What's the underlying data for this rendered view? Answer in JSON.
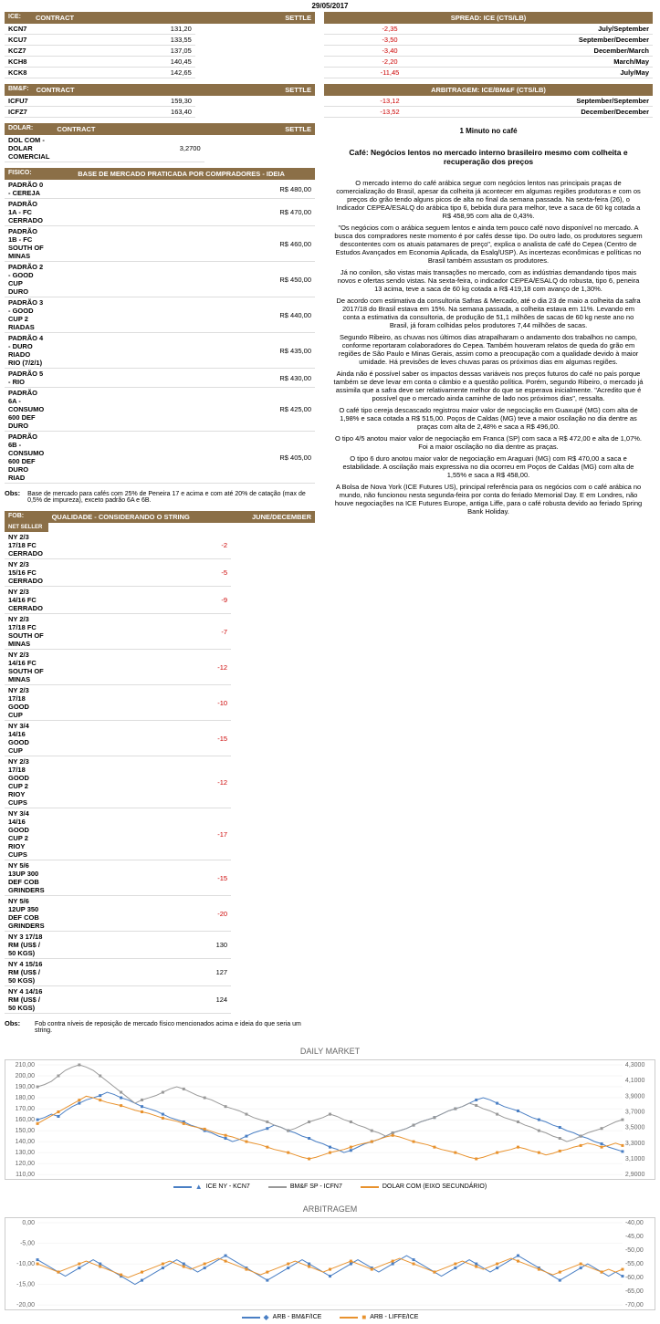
{
  "date": "29/05/2017",
  "ice_table": {
    "side_label": "ICE:",
    "headers": [
      "CONTRACT",
      "SETTLE"
    ],
    "rows": [
      [
        "KCN7",
        "131,20"
      ],
      [
        "KCU7",
        "133,55"
      ],
      [
        "KCZ7",
        "137,05"
      ],
      [
        "KCH8",
        "140,45"
      ],
      [
        "KCK8",
        "142,65"
      ]
    ]
  },
  "bmf_table": {
    "side_label": "BM&F:",
    "headers": [
      "CONTRACT",
      "SETTLE"
    ],
    "rows": [
      [
        "ICFU7",
        "159,30"
      ],
      [
        "ICFZ7",
        "163,40"
      ]
    ]
  },
  "dolar_table": {
    "side_label": "DOLAR:",
    "headers": [
      "CONTRACT",
      "SETTLE"
    ],
    "rows": [
      [
        "DOL COM - DOLAR COMERCIAL",
        "3,2700"
      ]
    ]
  },
  "fisico_table": {
    "side_label": "FISICO:",
    "header": "BASE DE MERCADO PRATICADA POR COMPRADORES - IDEIA",
    "rows": [
      [
        "PADRÃO 0 - CEREJA",
        "R$ 480,00"
      ],
      [
        "PADRÃO 1A - FC CERRADO",
        "R$ 470,00"
      ],
      [
        "PADRÃO 1B - FC SOUTH OF MINAS",
        "R$ 460,00"
      ],
      [
        "PADRÃO 2 - GOOD CUP DURO",
        "R$ 450,00"
      ],
      [
        "PADRÃO 3 - GOOD CUP 2 RIADAS",
        "R$ 440,00"
      ],
      [
        "PADRÃO 4 - DURO RIADO RIO (7/2/1)",
        "R$ 435,00"
      ],
      [
        "PADRÃO 5 - RIO",
        "R$ 430,00"
      ],
      [
        "PADRÃO 6A - CONSUMO 600 DEF DURO",
        "R$ 425,00"
      ],
      [
        "PADRÃO 6B - CONSUMO 600 DEF DURO RIAD",
        "R$ 405,00"
      ]
    ],
    "obs_label": "Obs:",
    "obs": "Base de mercado para cafés com 25% de Peneira 17 e acima e com até 20% de catação (max de 0,5% de impureza), exceto padrão 6A e 6B."
  },
  "fob_table": {
    "side_label": "FOB:",
    "side_label2": "NET SELLER",
    "headers": [
      "QUALIDADE - CONSIDERANDO O STRING",
      "JUNE/DECEMBER"
    ],
    "rows": [
      [
        "NY 2/3 17/18 FC CERRADO",
        "-2",
        true
      ],
      [
        "NY 2/3 15/16 FC CERRADO",
        "-5",
        true
      ],
      [
        "NY 2/3 14/16 FC CERRADO",
        "-9",
        true
      ],
      [
        "NY 2/3 17/18 FC SOUTH OF MINAS",
        "-7",
        true
      ],
      [
        "NY 2/3 14/16 FC SOUTH OF MINAS",
        "-12",
        true
      ],
      [
        "NY 2/3 17/18 GOOD CUP",
        "-10",
        true
      ],
      [
        "NY 3/4 14/16 GOOD CUP",
        "-15",
        true
      ],
      [
        "NY 2/3 17/18 GOOD CUP 2 RIOY CUPS",
        "-12",
        true
      ],
      [
        "NY 3/4 14/16 GOOD CUP 2 RIOY CUPS",
        "-17",
        true
      ],
      [
        "NY 5/6 13UP 300 DEF COB GRINDERS",
        "-15",
        true
      ],
      [
        "NY 5/6 12UP 350 DEF COB GRINDERS",
        "-20",
        true
      ],
      [
        "NY 3 17/18 RM (US$ / 50 KGS)",
        "130",
        false
      ],
      [
        "NY 4 15/16 RM (US$ / 50 KGS)",
        "127",
        false
      ],
      [
        "NY 4 14/16 RM (US$ / 50 KGS)",
        "124",
        false
      ]
    ],
    "obs_label": "Obs:",
    "obs": "Fob contra níveis de reposição de mercado físico mencionados acima e ideia do que seria um string."
  },
  "spread_table": {
    "header": "SPREAD: ICE (CTS/LB)",
    "rows": [
      [
        "-2,35",
        "July/September"
      ],
      [
        "-3,50",
        "September/December"
      ],
      [
        "-3,40",
        "December/March"
      ],
      [
        "-2,20",
        "March/May"
      ],
      [
        "-11,45",
        "July/May"
      ]
    ]
  },
  "arb_table": {
    "header": "ARBITRAGEM: ICE/BM&F (CTS/LB)",
    "rows": [
      [
        "-13,12",
        "September/September"
      ],
      [
        "-13,52",
        "December/December"
      ]
    ]
  },
  "article": {
    "minute_title": "1 Minuto no café",
    "subtitle": "Café: Negócios lentos no mercado interno brasileiro mesmo com colheita e recuperação dos preços",
    "paragraphs": [
      "O mercado interno do café arábica segue com negócios lentos nas principais praças de comercialização do Brasil, apesar da colheita já acontecer em algumas regiões produtoras e com os preços do grão tendo alguns picos de alta no final da semana passada. Na sexta-feira (26), o Indicador CEPEA/ESALQ do arábica tipo 6, bebida dura para melhor, teve a saca de 60 kg cotada a R$ 458,95 com alta de 0,43%.",
      "\"Os negócios com o arábica seguem lentos e ainda tem pouco café novo disponível no mercado. A busca dos compradores neste momento é por cafés desse tipo. Do outro lado, os produtores seguem descontentes com os atuais patamares de preço\", explica o analista de café do Cepea (Centro de Estudos Avançados em Economia Aplicada, da Esalq/USP). As incertezas econômicas e políticas no Brasil também assustam os produtores.",
      "Já no conilon, são vistas mais transações no mercado, com as indústrias demandando tipos mais novos e ofertas sendo vistas. Na sexta-feira, o indicador CEPEA/ESALQ do robusta, tipo 6, peneira 13 acima, teve a saca de 60 kg cotada a R$ 419,18 com avanço de 1,30%.",
      "De acordo com estimativa da consultoria Safras & Mercado, até o dia 23 de maio a colheita da safra 2017/18 do Brasil estava em 15%. Na semana passada, a colheita estava em 11%. Levando em conta a estimativa da consultoria, de produção de 51,1 milhões de sacas de 60 kg neste ano no Brasil, já foram colhidas pelos produtores 7,44 milhões de sacas.",
      "Segundo Ribeiro, as chuvas nos últimos dias atrapalharam o andamento dos trabalhos no campo, conforme reportaram colaboradores do Cepea. Também houveram relatos de queda do grão em regiões de São Paulo e Minas Gerais, assim como a preocupação com a qualidade devido à maior umidade. Há previsões de leves chuvas paras os próximos dias em algumas regiões.",
      "Ainda não é possível saber os impactos dessas variáveis nos preços futuros do café no país porque também se deve levar em conta o câmbio e a questão política. Porém, segundo Ribeiro, o mercado já assimila que a safra deve ser relativamente melhor do que se esperava inicialmente. \"Acredito que é possível que o mercado ainda caminhe de lado nos próximos dias\", ressalta.",
      "O café tipo cereja descascado registrou maior valor de negociação em Guaxupé (MG) com alta de 1,98% e saca cotada a R$ 515,00. Poços de Caldas (MG) teve a maior oscilação no dia dentre as praças com alta de 2,48% e saca a R$ 496,00.",
      "O tipo 4/5 anotou maior valor de negociação em Franca (SP) com saca a R$ 472,00 e alta de 1,07%. Foi a maior oscilação no dia dentre as praças.",
      "O tipo 6 duro anotou maior valor de negociação em Araguari (MG) com R$ 470,00 a saca e estabilidade. A oscilação mais expressiva no dia ocorreu em Poços de Caldas (MG) com alta de 1,55% e saca a R$ 458,00.",
      "A Bolsa de Nova York (ICE Futures US), principal referência para os negócios com o café arábica no mundo, não funcionou nesta segunda-feira por conta do feriado Memorial Day. E em Londres, não houve negociações na ICE Futures Europe, antiga Liffe, para o café robusta devido ao feriado Spring Bank Holiday."
    ]
  },
  "chart1": {
    "title": "DAILY MARKET",
    "yleft_ticks": [
      "110,00",
      "120,00",
      "130,00",
      "140,00",
      "150,00",
      "160,00",
      "170,00",
      "180,00",
      "190,00",
      "200,00",
      "210,00"
    ],
    "yright_ticks": [
      "2,9000",
      "3,1000",
      "3,3000",
      "3,5000",
      "3,7000",
      "3,9000",
      "4,1000",
      "4,3000"
    ],
    "yleft_range": [
      110,
      210
    ],
    "yright_range": [
      2.9,
      4.3
    ],
    "colors": {
      "ice": "#4a7fc4",
      "bmf": "#999999",
      "dolar": "#e8922e"
    },
    "series": {
      "ice": [
        160,
        162,
        165,
        163,
        168,
        172,
        175,
        178,
        180,
        182,
        185,
        183,
        180,
        178,
        175,
        172,
        170,
        168,
        165,
        162,
        160,
        158,
        155,
        153,
        150,
        148,
        145,
        143,
        140,
        142,
        145,
        148,
        150,
        152,
        155,
        153,
        150,
        148,
        145,
        143,
        140,
        138,
        135,
        133,
        130,
        132,
        135,
        138,
        140,
        142,
        145,
        148,
        150,
        152,
        155,
        158,
        160,
        162,
        165,
        168,
        170,
        172,
        175,
        178,
        180,
        178,
        175,
        172,
        170,
        168,
        165,
        162,
        160,
        158,
        155,
        153,
        150,
        148,
        145,
        143,
        140,
        138,
        135,
        133,
        131
      ],
      "bmf": [
        190,
        192,
        195,
        200,
        205,
        208,
        210,
        208,
        205,
        200,
        195,
        190,
        185,
        180,
        175,
        178,
        180,
        182,
        185,
        188,
        190,
        188,
        185,
        182,
        180,
        178,
        175,
        172,
        170,
        168,
        165,
        162,
        160,
        158,
        155,
        153,
        150,
        152,
        155,
        158,
        160,
        162,
        165,
        163,
        160,
        158,
        155,
        153,
        150,
        148,
        145,
        148,
        150,
        152,
        155,
        158,
        160,
        162,
        165,
        168,
        170,
        172,
        175,
        173,
        170,
        168,
        165,
        162,
        160,
        158,
        155,
        153,
        150,
        148,
        145,
        143,
        140,
        142,
        145,
        148,
        150,
        152,
        155,
        158,
        160
      ],
      "dolar": [
        3.55,
        3.6,
        3.65,
        3.7,
        3.75,
        3.8,
        3.85,
        3.9,
        3.88,
        3.85,
        3.82,
        3.8,
        3.78,
        3.75,
        3.72,
        3.7,
        3.68,
        3.65,
        3.62,
        3.6,
        3.58,
        3.55,
        3.52,
        3.5,
        3.48,
        3.45,
        3.42,
        3.4,
        3.38,
        3.35,
        3.32,
        3.3,
        3.28,
        3.25,
        3.22,
        3.2,
        3.18,
        3.15,
        3.12,
        3.1,
        3.12,
        3.15,
        3.18,
        3.2,
        3.22,
        3.25,
        3.28,
        3.3,
        3.32,
        3.35,
        3.38,
        3.4,
        3.38,
        3.35,
        3.32,
        3.3,
        3.28,
        3.25,
        3.22,
        3.2,
        3.18,
        3.15,
        3.12,
        3.1,
        3.12,
        3.15,
        3.18,
        3.2,
        3.22,
        3.25,
        3.23,
        3.2,
        3.18,
        3.15,
        3.17,
        3.2,
        3.22,
        3.25,
        3.27,
        3.3,
        3.28,
        3.25,
        3.27,
        3.3,
        3.27
      ],
      "ice_marker": "▲"
    },
    "legend": [
      {
        "label": "ICE NY - KCN7",
        "color": "#4a7fc4",
        "marker": "triangle"
      },
      {
        "label": "BM&F SP - ICFN7",
        "color": "#999999",
        "marker": "line"
      },
      {
        "label": "DOLAR COM (EIXO SECUNDÁRIO)",
        "color": "#e8922e",
        "marker": "line"
      }
    ]
  },
  "chart2": {
    "title": "ARBITRAGEM",
    "yleft_ticks": [
      "-20,00",
      "-15,00",
      "-10,00",
      "-5,00",
      "0,00"
    ],
    "yright_ticks": [
      "-70,00",
      "-65,00",
      "-60,00",
      "-55,00",
      "-50,00",
      "-45,00",
      "-40,00"
    ],
    "yleft_range": [
      -20,
      0
    ],
    "yright_range": [
      -70,
      -40
    ],
    "colors": {
      "bmf": "#4a7fc4",
      "liffe": "#e8922e"
    },
    "series": {
      "bmf": [
        -9,
        -10,
        -11,
        -12,
        -13,
        -12,
        -11,
        -10,
        -9,
        -10,
        -11,
        -12,
        -13,
        -14,
        -15,
        -14,
        -13,
        -12,
        -11,
        -10,
        -9,
        -10,
        -11,
        -12,
        -11,
        -10,
        -9,
        -8,
        -9,
        -10,
        -11,
        -12,
        -13,
        -14,
        -13,
        -12,
        -11,
        -10,
        -9,
        -10,
        -11,
        -12,
        -13,
        -12,
        -11,
        -10,
        -9,
        -10,
        -11,
        -12,
        -11,
        -10,
        -9,
        -8,
        -9,
        -10,
        -11,
        -12,
        -13,
        -12,
        -11,
        -10,
        -9,
        -10,
        -11,
        -12,
        -11,
        -10,
        -9,
        -8,
        -9,
        -10,
        -11,
        -12,
        -13,
        -14,
        -13,
        -12,
        -11,
        -10,
        -11,
        -12,
        -13,
        -12,
        -13
      ],
      "liffe": [
        -55,
        -56,
        -57,
        -58,
        -57,
        -56,
        -55,
        -54,
        -55,
        -56,
        -57,
        -58,
        -59,
        -60,
        -59,
        -58,
        -57,
        -56,
        -55,
        -54,
        -55,
        -56,
        -57,
        -56,
        -55,
        -54,
        -53,
        -54,
        -55,
        -56,
        -57,
        -58,
        -59,
        -58,
        -57,
        -56,
        -55,
        -54,
        -55,
        -56,
        -57,
        -58,
        -57,
        -56,
        -55,
        -54,
        -55,
        -56,
        -57,
        -56,
        -55,
        -54,
        -53,
        -54,
        -55,
        -56,
        -57,
        -58,
        -57,
        -56,
        -55,
        -54,
        -55,
        -56,
        -57,
        -56,
        -55,
        -54,
        -53,
        -54,
        -55,
        -56,
        -57,
        -58,
        -59,
        -58,
        -57,
        -56,
        -55,
        -56,
        -57,
        -58,
        -57,
        -58,
        -57
      ]
    },
    "legend": [
      {
        "label": "ARB - BM&F/ICE",
        "color": "#4a7fc4",
        "marker": "diamond"
      },
      {
        "label": "ARB - LIFFE/ICE",
        "color": "#e8922e",
        "marker": "square"
      }
    ]
  }
}
